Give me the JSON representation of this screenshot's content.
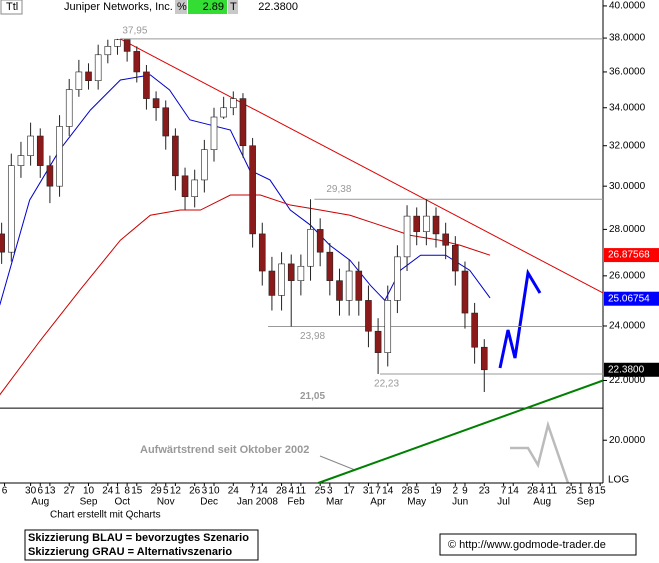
{
  "header": {
    "code": "Ttl",
    "name": "Juniper Networks, Inc.",
    "pct_sign": "%",
    "change": "2.89",
    "t": "T",
    "last": "22.3800"
  },
  "chart_data": {
    "type": "candlestick",
    "x": [
      1,
      2,
      3,
      4,
      5,
      6,
      7,
      8,
      9,
      10,
      11,
      12,
      13,
      14,
      15,
      16,
      17,
      18,
      19,
      20,
      21,
      22,
      23,
      24,
      25,
      26,
      27,
      28,
      29,
      30,
      31,
      32,
      33,
      34,
      35,
      36,
      37,
      38,
      39,
      40,
      41,
      42,
      43,
      44,
      45,
      46,
      47,
      48,
      49,
      50,
      51
    ],
    "open": [
      27.8,
      27.0,
      31.0,
      31.5,
      32.5,
      31.0,
      30.0,
      33.0,
      35.0,
      36.0,
      35.5,
      37.0,
      37.5,
      37.9,
      37.2,
      36.0,
      34.5,
      34.0,
      32.5,
      30.5,
      29.5,
      30.3,
      31.8,
      33.5,
      34.0,
      34.5,
      32.0,
      27.8,
      26.2,
      25.2,
      26.5,
      25.8,
      26.4,
      28.0,
      27.0,
      25.8,
      25.0,
      26.2,
      25.0,
      23.8,
      23.0,
      25.0,
      26.8,
      28.6,
      27.9,
      28.6,
      27.8,
      27.3,
      26.2,
      24.5,
      23.2
    ],
    "high": [
      28.3,
      31.6,
      32.2,
      33.2,
      32.9,
      31.5,
      33.6,
      35.6,
      36.7,
      36.5,
      37.6,
      37.9,
      37.95,
      37.9,
      37.5,
      36.4,
      34.9,
      34.4,
      32.9,
      30.9,
      30.8,
      32.3,
      34.0,
      34.6,
      34.9,
      34.8,
      32.4,
      28.3,
      26.8,
      27.0,
      26.9,
      26.9,
      29.38,
      28.5,
      27.4,
      26.3,
      26.7,
      26.6,
      25.6,
      24.3,
      25.6,
      27.3,
      29.1,
      29.0,
      29.38,
      29.0,
      28.3,
      27.7,
      26.6,
      24.9,
      23.5
    ],
    "low": [
      26.5,
      26.6,
      30.4,
      31.0,
      30.4,
      29.2,
      29.5,
      32.5,
      34.6,
      35.0,
      35.0,
      36.5,
      37.0,
      36.6,
      35.4,
      33.9,
      33.3,
      31.8,
      29.8,
      28.9,
      29.0,
      29.7,
      31.2,
      33.4,
      33.6,
      31.4,
      27.2,
      25.6,
      24.6,
      24.6,
      23.98,
      25.2,
      25.8,
      26.4,
      25.2,
      24.4,
      24.4,
      24.4,
      23.2,
      22.23,
      22.5,
      24.5,
      26.2,
      27.3,
      27.3,
      27.2,
      26.7,
      25.6,
      23.9,
      22.6,
      21.6
    ],
    "close": [
      27.0,
      31.0,
      31.5,
      32.5,
      31.0,
      30.0,
      33.0,
      35.0,
      36.0,
      35.5,
      37.0,
      37.5,
      37.9,
      37.2,
      36.0,
      34.5,
      34.0,
      32.5,
      30.5,
      29.5,
      30.3,
      31.8,
      33.5,
      34.0,
      34.5,
      32.0,
      27.8,
      26.2,
      25.2,
      26.5,
      25.8,
      26.4,
      28.0,
      27.0,
      25.8,
      25.0,
      26.2,
      25.0,
      23.8,
      23.0,
      25.0,
      26.8,
      28.6,
      27.9,
      28.6,
      27.8,
      27.3,
      26.2,
      24.5,
      23.2,
      22.38
    ],
    "up_color": "#ffffff",
    "down_color": "#8b1a1a",
    "wick_color": "#222222",
    "series": [
      {
        "color": "#0000cc",
        "x": [
          0.8,
          3.9,
          7.0,
          10.2,
          13.3,
          16.4,
          18.4,
          20.5,
          22.6,
          24.7,
          26.7,
          28.8,
          30.9,
          33.0,
          35.0,
          37.1,
          39.2,
          40.7,
          42.3,
          44.4,
          47.0,
          49.5,
          51.6
        ],
        "values": [
          24.81,
          29.34,
          31.78,
          33.88,
          35.54,
          35.83,
          34.98,
          33.35,
          33.08,
          32.81,
          30.78,
          30.3,
          28.88,
          28.19,
          27.3,
          26.65,
          25.61,
          25.0,
          26.23,
          26.87,
          26.87,
          26.23,
          25.1
        ]
      },
      {
        "color": "#cc0000",
        "x": [
          0.8,
          5.0,
          9.1,
          13.3,
          16.4,
          19.5,
          21.6,
          24.7,
          27.8,
          30.9,
          34.0,
          37.1,
          40.2,
          43.3,
          46.4,
          48.5,
          51.6
        ],
        "values": [
          21.5,
          23.45,
          25.41,
          27.52,
          28.64,
          28.88,
          28.88,
          29.58,
          29.58,
          29.11,
          28.88,
          28.64,
          28.19,
          27.74,
          27.52,
          27.3,
          26.87
        ]
      }
    ],
    "levels": [
      {
        "value": 37.95,
        "label": "37,95",
        "from": 13.3,
        "color": "#999999"
      },
      {
        "value": 29.38,
        "label": "29,38",
        "from": 33.4,
        "color": "#999999"
      },
      {
        "value": 23.98,
        "label": "23,98",
        "from": 28.6,
        "color": "#999999"
      },
      {
        "value": 22.23,
        "label": "22,23",
        "from": 40.2,
        "color": "#999999"
      },
      {
        "value": 21.05,
        "label": "21,05",
        "from": 0.83,
        "color": "#000000"
      }
    ],
    "trendlines": [
      {
        "color": "#dd0000",
        "x": [
          13.3,
          63.3
        ],
        "values": [
          37.95,
          25.3
        ]
      },
      {
        "color": "#008000",
        "x": [
          33.8,
          63.3
        ],
        "values": [
          18.68,
          22.0
        ]
      }
    ],
    "price_labels": [
      {
        "value": 26.87568,
        "label": "26.87568",
        "color": "#ff0000"
      },
      {
        "value": 25.06754,
        "label": "25.06754",
        "color": "#0000ff"
      },
      {
        "value": 22.38,
        "label": "22.3800",
        "color": "#000000"
      }
    ],
    "annotation": "Aufwärtstrend seit Oktober 2002",
    "log_label": "LOG",
    "log_scale": true,
    "xlim": [
      0.83,
      63.3
    ],
    "ylim": [
      18.68,
      40.38
    ],
    "yticks": [
      {
        "value": 40,
        "label": "40.0000"
      },
      {
        "value": 38,
        "label": "38.0000"
      },
      {
        "value": 36,
        "label": "36.0000"
      },
      {
        "value": 34,
        "label": "34.0000"
      },
      {
        "value": 32,
        "label": "32.0000"
      },
      {
        "value": 30,
        "label": "30.0000"
      },
      {
        "value": 28,
        "label": "28.0000"
      },
      {
        "value": 26,
        "label": "26.0000"
      },
      {
        "value": 24,
        "label": "24.0000"
      },
      {
        "value": 22,
        "label": "22.0000"
      },
      {
        "value": 20,
        "label": "20.0000"
      }
    ],
    "xticks": [
      {
        "value": 1.3,
        "label": "6"
      },
      {
        "value": 4,
        "label": "30"
      },
      {
        "value": 5,
        "label": "6"
      },
      {
        "value": 6,
        "label": "13"
      },
      {
        "value": 8,
        "label": "27"
      },
      {
        "value": 10,
        "label": "10"
      },
      {
        "value": 12,
        "label": "24"
      },
      {
        "value": 13,
        "label": "1"
      },
      {
        "value": 14,
        "label": "8"
      },
      {
        "value": 15,
        "label": "15"
      },
      {
        "value": 17,
        "label": "29"
      },
      {
        "value": 18,
        "label": "5"
      },
      {
        "value": 19,
        "label": "12"
      },
      {
        "value": 21,
        "label": "26"
      },
      {
        "value": 22,
        "label": "3"
      },
      {
        "value": 23,
        "label": "10"
      },
      {
        "value": 25,
        "label": "24"
      },
      {
        "value": 27,
        "label": "7"
      },
      {
        "value": 28,
        "label": "14"
      },
      {
        "value": 30,
        "label": "28"
      },
      {
        "value": 31,
        "label": "4"
      },
      {
        "value": 32,
        "label": "11"
      },
      {
        "value": 34,
        "label": "25"
      },
      {
        "value": 35,
        "label": "3"
      },
      {
        "value": 37,
        "label": "17"
      },
      {
        "value": 39,
        "label": "31"
      },
      {
        "value": 40,
        "label": "7"
      },
      {
        "value": 41,
        "label": "14"
      },
      {
        "value": 43,
        "label": "28"
      },
      {
        "value": 44,
        "label": "5"
      },
      {
        "value": 46,
        "label": "19"
      },
      {
        "value": 48,
        "label": "2"
      },
      {
        "value": 49,
        "label": "9"
      },
      {
        "value": 51,
        "label": "23"
      },
      {
        "value": 53,
        "label": "7"
      },
      {
        "value": 54,
        "label": "14"
      },
      {
        "value": 56,
        "label": "28"
      },
      {
        "value": 57,
        "label": "4"
      },
      {
        "value": 58,
        "label": "11"
      },
      {
        "value": 60,
        "label": "25"
      },
      {
        "value": 61,
        "label": "1"
      },
      {
        "value": 62,
        "label": "8"
      },
      {
        "value": 63,
        "label": "15"
      }
    ],
    "months": [
      {
        "value": 5,
        "label": "Aug"
      },
      {
        "value": 10,
        "label": "Sep"
      },
      {
        "value": 13.5,
        "label": "Oct"
      },
      {
        "value": 18,
        "label": "Nov"
      },
      {
        "value": 22.5,
        "label": "Dec"
      },
      {
        "value": 27.5,
        "label": "Jan 2008"
      },
      {
        "value": 31.5,
        "label": "Feb"
      },
      {
        "value": 35.5,
        "label": "Mar"
      },
      {
        "value": 40,
        "label": "Apr"
      },
      {
        "value": 44,
        "label": "May"
      },
      {
        "value": 48.5,
        "label": "Jun"
      },
      {
        "value": 53,
        "label": "Jul"
      },
      {
        "value": 57,
        "label": "Aug"
      },
      {
        "value": 61.5,
        "label": "Sep"
      }
    ]
  },
  "footer": {
    "credit": "Chart erstellt mit Qcharts",
    "legend_blue": "Skizzierung BLAU = bevorzugtes Szenario",
    "legend_gray": "Skizzierung GRAU = Alternativszenario",
    "copyright": "© http://www.godmode-trader.de"
  }
}
